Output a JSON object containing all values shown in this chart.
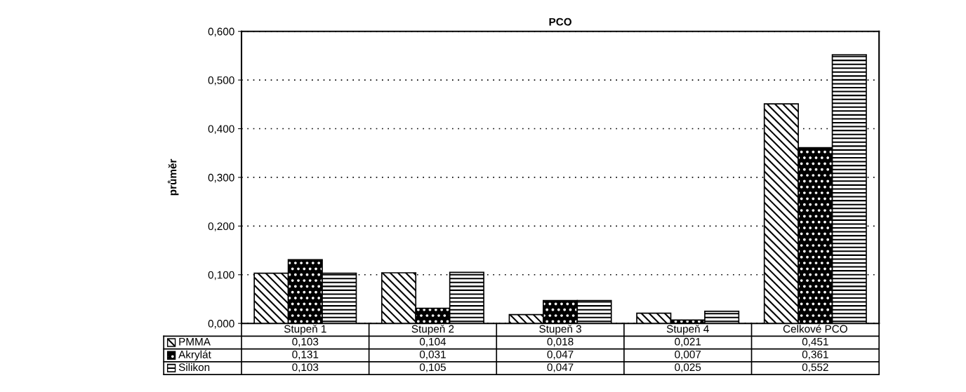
{
  "chart_data": {
    "type": "bar",
    "title": "PCO",
    "ylabel": "průměr",
    "categories": [
      "Stupeň 1",
      "Stupeň 2",
      "Stupeň 3",
      "Stupeň 4",
      "Celkové PCO"
    ],
    "series": [
      {
        "name": "PMMA",
        "color": "#000000",
        "values": [
          0.103,
          0.104,
          0.018,
          0.021,
          0.451
        ],
        "value_labels": [
          "0,103",
          "0,104",
          "0,018",
          "0,021",
          "0,451"
        ]
      },
      {
        "name": "Akrylát",
        "color": "#000000",
        "values": [
          0.131,
          0.031,
          0.047,
          0.007,
          0.361
        ],
        "value_labels": [
          "0,131",
          "0,031",
          "0,047",
          "0,007",
          "0,361"
        ]
      },
      {
        "name": "Silikon",
        "color": "#000000",
        "values": [
          0.103,
          0.105,
          0.047,
          0.025,
          0.552
        ],
        "value_labels": [
          "0,103",
          "0,105",
          "0,047",
          "0,025",
          "0,552"
        ]
      }
    ],
    "ylim": [
      0,
      0.6
    ],
    "yticks": [
      {
        "value": 0,
        "label": "0,000"
      },
      {
        "value": 0.1,
        "label": "0,100"
      },
      {
        "value": 0.2,
        "label": "0,200"
      },
      {
        "value": 0.3,
        "label": "0,300"
      },
      {
        "value": 0.4,
        "label": "0,400"
      },
      {
        "value": 0.5,
        "label": "0,500"
      },
      {
        "value": 0.6,
        "label": "0,600"
      }
    ],
    "grid": "y",
    "legend": "bottom left"
  }
}
